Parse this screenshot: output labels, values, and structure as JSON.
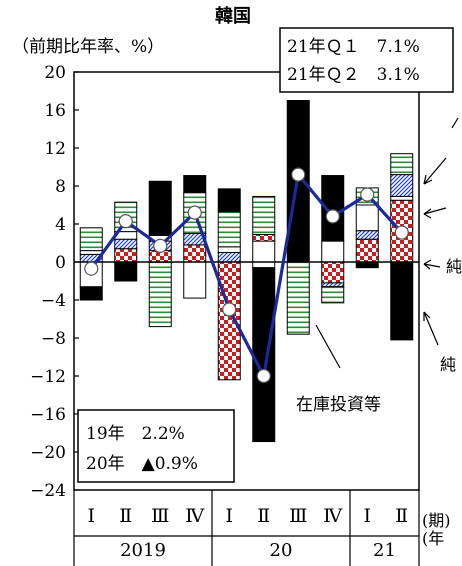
{
  "chart_data": {
    "type": "bar",
    "title": "韓国",
    "ylabel": "（前期比年率、%）",
    "ylim": [
      -24,
      20
    ],
    "yticks": [
      20,
      16,
      12,
      8,
      4,
      0,
      -4,
      -8,
      -12,
      -16,
      -20,
      -24
    ],
    "grid": false,
    "quarters": [
      "Ⅰ",
      "Ⅱ",
      "Ⅲ",
      "Ⅳ",
      "Ⅰ",
      "Ⅱ",
      "Ⅲ",
      "Ⅳ",
      "Ⅰ",
      "Ⅱ"
    ],
    "year_groups": [
      {
        "label": "2019",
        "span": 4
      },
      {
        "label": "20",
        "span": 4
      },
      {
        "label": "21",
        "span": 2
      }
    ],
    "xaxis_suffix_period": "(期)",
    "xaxis_suffix_year": "(年",
    "gdp_line": {
      "values": [
        -0.7,
        4.3,
        1.7,
        5.2,
        -5.0,
        -12.0,
        9.2,
        4.8,
        7.1,
        3.1
      ]
    },
    "stacks": [
      {
        "q": "2019 Ⅰ",
        "segs": [
          {
            "c": "black",
            "f": -2.6,
            "t": -4.0
          },
          {
            "c": "white",
            "f": -2.6,
            "t": 0
          },
          {
            "c": "blue",
            "f": 0,
            "t": 0.8
          },
          {
            "c": "white",
            "f": 0.8,
            "t": 1.2
          },
          {
            "c": "green",
            "f": 1.2,
            "t": 3.6
          }
        ]
      },
      {
        "q": "2019 Ⅱ",
        "segs": [
          {
            "c": "black",
            "f": 0,
            "t": -2.0
          },
          {
            "c": "check",
            "f": 0,
            "t": 1.4
          },
          {
            "c": "blue",
            "f": 1.4,
            "t": 2.4
          },
          {
            "c": "white",
            "f": 2.4,
            "t": 3.2
          },
          {
            "c": "green",
            "f": 3.2,
            "t": 6.3
          }
        ]
      },
      {
        "q": "2019 Ⅲ",
        "segs": [
          {
            "c": "green",
            "f": 0,
            "t": -6.8
          },
          {
            "c": "check",
            "f": 0,
            "t": 1.2
          },
          {
            "c": "blue",
            "f": 1.2,
            "t": 2.2
          },
          {
            "c": "white",
            "f": 2.2,
            "t": 2.8
          },
          {
            "c": "black",
            "f": 2.8,
            "t": 8.5
          }
        ]
      },
      {
        "q": "2019 Ⅳ",
        "segs": [
          {
            "c": "white",
            "f": 0,
            "t": -3.8
          },
          {
            "c": "check",
            "f": 0,
            "t": 1.8
          },
          {
            "c": "blue",
            "f": 1.8,
            "t": 3.0
          },
          {
            "c": "green",
            "f": 3.0,
            "t": 7.3
          },
          {
            "c": "black",
            "f": 7.3,
            "t": 9.1
          }
        ]
      },
      {
        "q": "2020 Ⅰ",
        "segs": [
          {
            "c": "check",
            "f": 0,
            "t": -12.4
          },
          {
            "c": "blue",
            "f": 0,
            "t": 1.0
          },
          {
            "c": "white",
            "f": 1.0,
            "t": 1.6
          },
          {
            "c": "green",
            "f": 1.6,
            "t": 5.3
          },
          {
            "c": "black",
            "f": 5.3,
            "t": 7.7
          }
        ]
      },
      {
        "q": "2020 Ⅱ",
        "segs": [
          {
            "c": "white",
            "f": 0,
            "t": -0.6
          },
          {
            "c": "black",
            "f": -0.6,
            "t": -18.9
          },
          {
            "c": "white",
            "f": 0,
            "t": 2.2
          },
          {
            "c": "check",
            "f": 2.2,
            "t": 2.9
          },
          {
            "c": "green",
            "f": 2.9,
            "t": 6.9
          }
        ]
      },
      {
        "q": "2020 Ⅲ",
        "segs": [
          {
            "c": "green",
            "f": 0,
            "t": -7.6
          },
          {
            "c": "black",
            "f": 0,
            "t": 17.0
          }
        ]
      },
      {
        "q": "2020 Ⅳ",
        "segs": [
          {
            "c": "check",
            "f": 0,
            "t": -2.2
          },
          {
            "c": "blue",
            "f": -2.2,
            "t": -2.6
          },
          {
            "c": "green",
            "f": -2.6,
            "t": -4.3
          },
          {
            "c": "white",
            "f": 0,
            "t": 2.2
          },
          {
            "c": "black",
            "f": 2.2,
            "t": 9.1
          }
        ]
      },
      {
        "q": "2021 Ⅰ",
        "segs": [
          {
            "c": "black",
            "f": 0,
            "t": -0.6
          },
          {
            "c": "check",
            "f": 0,
            "t": 2.4
          },
          {
            "c": "blue",
            "f": 2.4,
            "t": 3.3
          },
          {
            "c": "white",
            "f": 3.3,
            "t": 6.0
          },
          {
            "c": "green",
            "f": 6.0,
            "t": 7.8
          }
        ]
      },
      {
        "q": "2021 Ⅱ",
        "segs": [
          {
            "c": "black",
            "f": 0,
            "t": -8.2
          },
          {
            "c": "check",
            "f": 0,
            "t": 6.5
          },
          {
            "c": "white",
            "f": 6.5,
            "t": 6.9
          },
          {
            "c": "blue",
            "f": 6.9,
            "t": 9.2
          },
          {
            "c": "green",
            "f": 9.2,
            "t": 11.4
          }
        ]
      }
    ],
    "annotations": {
      "top_box_line1": "21年Ｑ１　7.1%",
      "top_box_line2": "21年Ｑ２　3.1%",
      "bottom_box_line1": "19年　2.2%",
      "bottom_box_line2": "20年　▲0.9%",
      "inventory_label": "在庫投資等",
      "right_label_mid": "純",
      "right_label_low": "純"
    },
    "colors": {
      "gdp_line": "#1a2a9a",
      "green": "#2e8b3a",
      "blue": "#2244cc",
      "check": "#c81e1e",
      "black": "#000000"
    }
  }
}
